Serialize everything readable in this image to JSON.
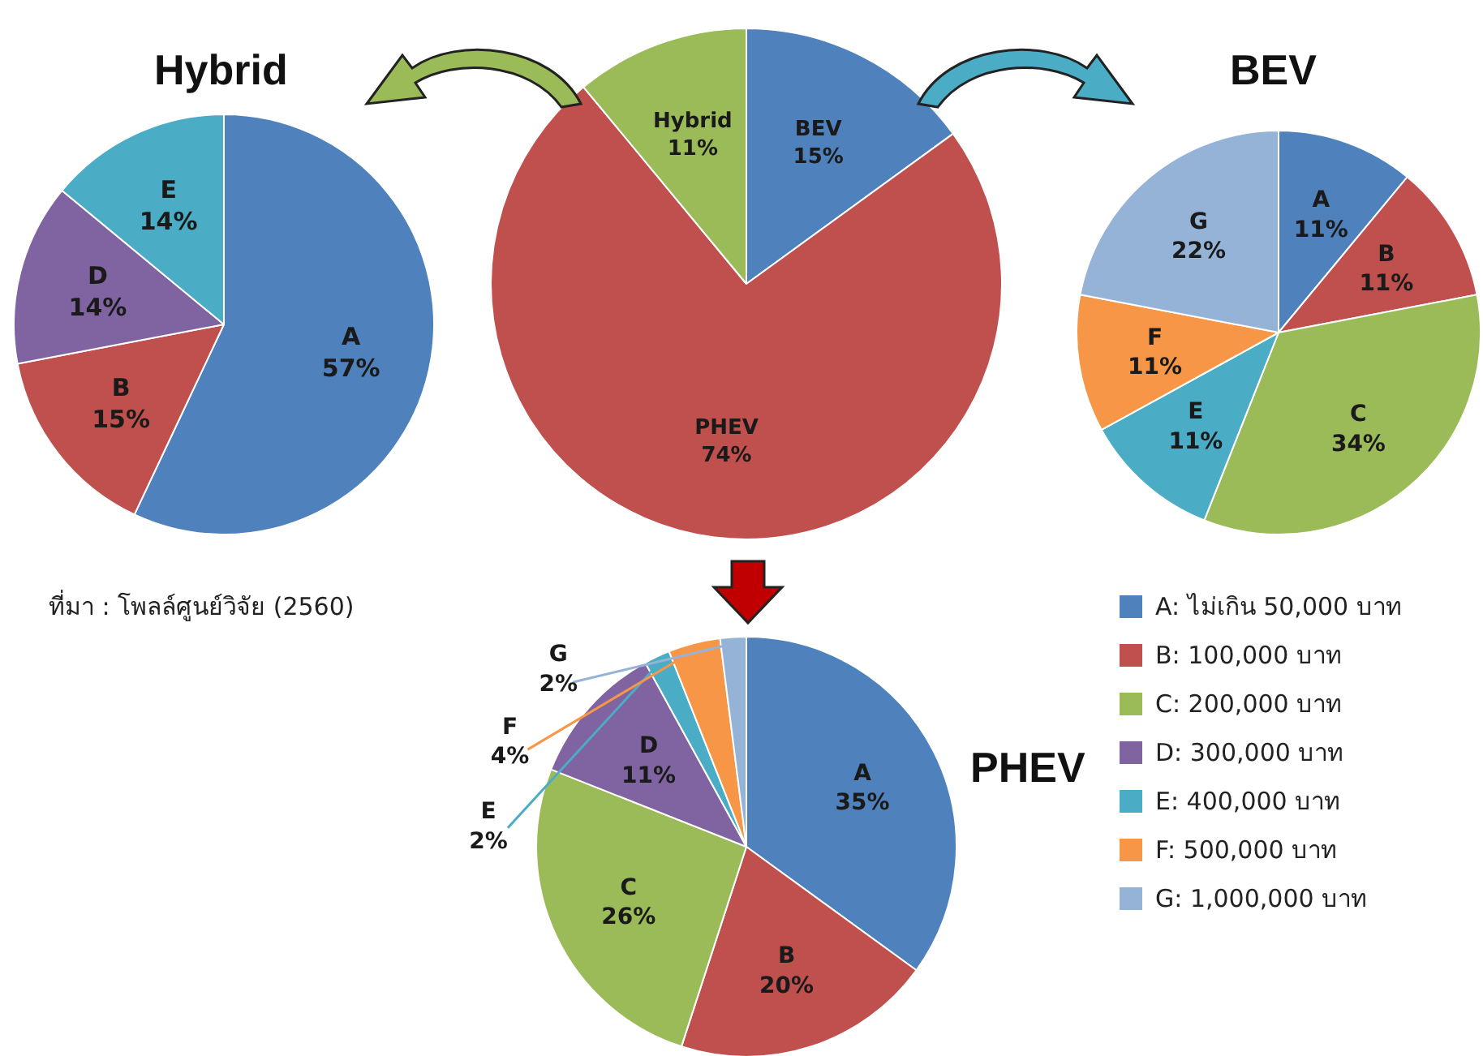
{
  "chart_data": [
    {
      "type": "pie",
      "title": "Hybrid",
      "categories": [
        "A",
        "B",
        "D",
        "E"
      ],
      "values": [
        57,
        15,
        14,
        14
      ],
      "value_labels": [
        "57%",
        "15%",
        "14%",
        "14%"
      ],
      "colors": [
        "#4f81bd",
        "#c0504d",
        "#8064a2",
        "#4bacc6"
      ]
    },
    {
      "type": "pie",
      "categories": [
        "BEV",
        "PHEV",
        "Hybrid"
      ],
      "values": [
        15,
        74,
        11
      ],
      "value_labels": [
        "15%",
        "74%",
        "11%"
      ],
      "colors": [
        "#4f81bd",
        "#c0504d",
        "#9bbb59"
      ]
    },
    {
      "type": "pie",
      "title": "BEV",
      "categories": [
        "A",
        "B",
        "C",
        "E",
        "F",
        "G"
      ],
      "values": [
        11,
        11,
        34,
        11,
        11,
        22
      ],
      "value_labels": [
        "11%",
        "11%",
        "34%",
        "11%",
        "11%",
        "22%"
      ],
      "colors": [
        "#4f81bd",
        "#c0504d",
        "#9bbb59",
        "#4bacc6",
        "#f79646",
        "#95b3d7"
      ]
    },
    {
      "type": "pie",
      "title": "PHEV",
      "categories": [
        "A",
        "B",
        "C",
        "D",
        "E",
        "F",
        "G"
      ],
      "values": [
        35,
        20,
        26,
        11,
        2,
        4,
        2
      ],
      "value_labels": [
        "35%",
        "20%",
        "26%",
        "11%",
        "2%",
        "4%",
        "2%"
      ],
      "colors": [
        "#4f81bd",
        "#c0504d",
        "#9bbb59",
        "#8064a2",
        "#4bacc6",
        "#f79646",
        "#95b3d7"
      ]
    },
    {
      "type": "other",
      "categories": [
        "A: ไม่เกิน 50,000 บาท",
        "B: 100,000 บาท",
        "C: 200,000 บาท",
        "D: 300,000 บาท",
        "E: 400,000 บาท",
        "F: 500,000 บาท",
        "G: 1,000,000 บาท"
      ],
      "colors": [
        "#4f81bd",
        "#c0504d",
        "#9bbb59",
        "#8064a2",
        "#4bacc6",
        "#f79646",
        "#95b3d7"
      ],
      "annotations": [
        "ที่มา : โพลล์ศูนย์วิจัย (2560)"
      ]
    }
  ]
}
